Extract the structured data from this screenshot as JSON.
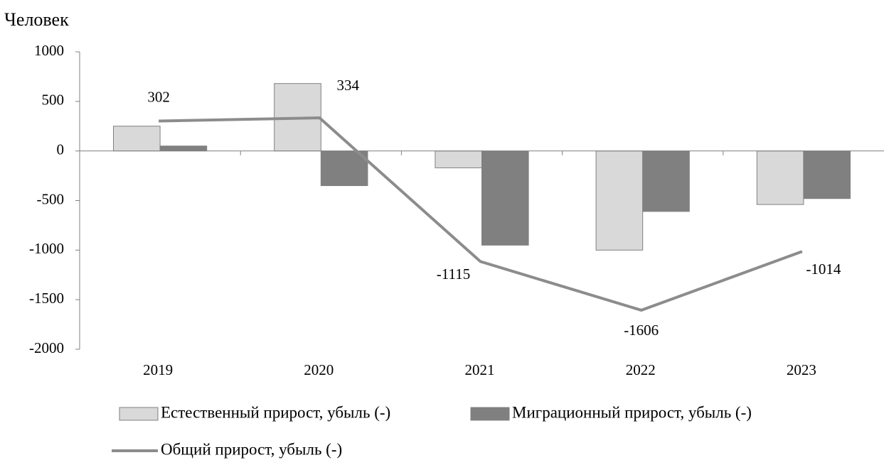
{
  "chart_data": {
    "type": "bar_line",
    "y_label": "Человек",
    "categories": [
      "2019",
      "2020",
      "2021",
      "2022",
      "2023"
    ],
    "series": [
      {
        "name": "Естественный прирост, убыль (-)",
        "type": "bar",
        "color": "#d9d9d9",
        "values": [
          250,
          680,
          -170,
          -1000,
          -540
        ]
      },
      {
        "name": "Миграционный прирост, убыль (-)",
        "type": "bar",
        "color": "#808080",
        "values": [
          50,
          -350,
          -950,
          -610,
          -480
        ]
      },
      {
        "name": "Общий прирост, убыль (-)",
        "type": "line",
        "color": "#8c8c8c",
        "values": [
          302,
          334,
          -1115,
          -1606,
          -1014
        ]
      }
    ],
    "ylim": [
      -2000,
      1000
    ],
    "yticks": [
      -2000,
      -1500,
      -1000,
      -500,
      0,
      500,
      1000
    ],
    "legend": "bottom"
  }
}
